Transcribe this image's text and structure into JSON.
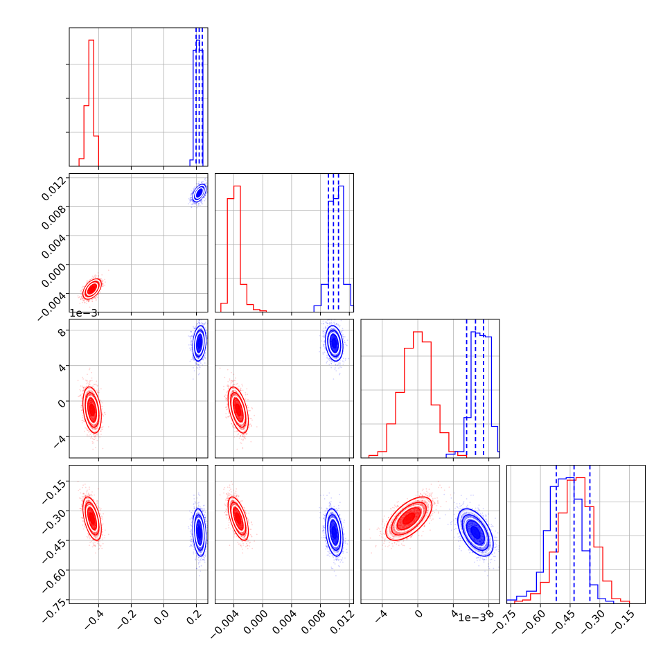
{
  "chart_data": {
    "type": "corner",
    "parameters": [
      {
        "ticks": [
          -0.4,
          -0.2,
          0.0,
          0.2
        ],
        "tick_labels": [
          "−0.4",
          "−0.2",
          "0.0",
          "0.2"
        ],
        "range": [
          -0.58,
          0.27
        ],
        "offset_text": ""
      },
      {
        "ticks": [
          -0.004,
          0.0,
          0.004,
          0.008,
          0.012
        ],
        "tick_labels": [
          "−0.004",
          "0.000",
          "0.004",
          "0.008",
          "0.012"
        ],
        "range": [
          -0.0066,
          0.0126
        ],
        "offset_text": ""
      },
      {
        "ticks": [
          -4,
          0,
          4,
          8
        ],
        "tick_labels": [
          "−4",
          "0",
          "4",
          "8"
        ],
        "range": [
          -6.4,
          9.2
        ],
        "offset_text": "1e−3"
      },
      {
        "ticks": [
          -0.75,
          -0.6,
          -0.45,
          -0.3,
          -0.15
        ],
        "tick_labels": [
          "−0.75",
          "−0.60",
          "−0.45",
          "−0.30",
          "−0.15"
        ],
        "range": [
          -0.77,
          -0.07
        ],
        "offset_text": ""
      }
    ],
    "series": [
      {
        "color": "#ff0000",
        "means": [
          -0.44,
          -0.0034,
          -1.0,
          -0.34
        ],
        "sds": [
          0.028,
          0.0007,
          1.3,
          0.055
        ],
        "correlations": [
          [
            0,
            1,
            0.5
          ],
          [
            0,
            2,
            -0.3
          ],
          [
            0,
            3,
            -0.5
          ],
          [
            1,
            2,
            -0.5
          ],
          [
            1,
            3,
            -0.6
          ],
          [
            2,
            3,
            0.6
          ]
        ],
        "hist_heights": [
          [
            0.06,
            0.48,
            1.0,
            0.24
          ],
          [
            0.07,
            0.9,
            1.0,
            0.22,
            0.06,
            0.02,
            0.01
          ],
          [
            0.02,
            0.05,
            0.27,
            0.52,
            0.87,
            1.0,
            0.92,
            0.42,
            0.2,
            0.05,
            0.02
          ],
          [
            0.02,
            0.03,
            0.08,
            0.17,
            0.41,
            0.72,
            0.98,
            1.0,
            0.77,
            0.45,
            0.18,
            0.04,
            0.02
          ]
        ],
        "hist_bin_edges": [
          [
            -0.52,
            -0.49,
            -0.46,
            -0.43,
            -0.4
          ],
          [
            -0.0058,
            -0.0049,
            -0.004,
            -0.0031,
            -0.0022,
            -0.0013,
            -0.0004,
            0.0005
          ],
          [
            -5.5,
            -4.5,
            -3.5,
            -2.5,
            -1.5,
            -0.5,
            0.5,
            1.5,
            2.5,
            3.5,
            4.5,
            5.5
          ],
          [
            -0.73,
            -0.69,
            -0.65,
            -0.6,
            -0.555,
            -0.51,
            -0.465,
            -0.42,
            -0.375,
            -0.33,
            -0.285,
            -0.24,
            -0.195,
            -0.15
          ]
        ],
        "quantiles": [],
        "bin_values": []
      },
      {
        "color": "#0000ff",
        "means": [
          0.218,
          0.0099,
          6.5,
          -0.41
        ],
        "sds": [
          0.02,
          0.0006,
          1.0,
          0.06
        ],
        "correlations": [
          [
            0,
            1,
            0.5
          ],
          [
            0,
            2,
            0.2
          ],
          [
            0,
            3,
            -0.2
          ],
          [
            1,
            2,
            -0.2
          ],
          [
            1,
            3,
            -0.3
          ],
          [
            2,
            3,
            -0.5
          ]
        ],
        "hist_heights": [
          [
            0.05,
            0.92,
            1.0,
            0.92
          ],
          [
            0.05,
            0.22,
            0.88,
            0.9,
            1.0,
            0.22,
            0.05
          ],
          [
            0.03,
            0.05,
            0.32,
            1.0,
            0.99,
            0.97,
            0.96,
            0.25,
            0.05
          ],
          [
            0.03,
            0.06,
            0.1,
            0.25,
            0.58,
            0.93,
            0.99,
            1.0,
            0.83,
            0.42,
            0.15,
            0.04,
            0.02
          ]
        ],
        "hist_bin_edges": [
          [
            0.16,
            0.18,
            0.2,
            0.22,
            0.24
          ],
          [
            0.0071,
            0.0081,
            0.0091,
            0.0098,
            0.0105,
            0.0112,
            0.0122,
            0.0126
          ],
          [
            3.2,
            4.2,
            5.2,
            6.0,
            6.5,
            7.0,
            7.6,
            8.3,
            9.0,
            9.2
          ],
          [
            -0.77,
            -0.72,
            -0.67,
            -0.62,
            -0.585,
            -0.55,
            -0.51,
            -0.47,
            -0.43,
            -0.39,
            -0.35,
            -0.31,
            -0.27,
            -0.23
          ]
        ],
        "quantiles": [
          [
            0.198,
            0.217,
            0.236
          ],
          [
            0.0091,
            0.0098,
            0.0105
          ],
          [
            5.5,
            6.5,
            7.4
          ],
          [
            -0.52,
            -0.43,
            -0.35
          ]
        ]
      }
    ]
  }
}
